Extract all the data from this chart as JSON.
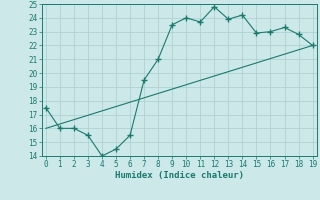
{
  "xlabel": "Humidex (Indice chaleur)",
  "line1_x": [
    0,
    1,
    2,
    3,
    4,
    5,
    6,
    7,
    8,
    9,
    10,
    11,
    12,
    13,
    14,
    15,
    16,
    17,
    18,
    19
  ],
  "line1_y": [
    17.5,
    16.0,
    16.0,
    15.5,
    14.0,
    14.5,
    15.5,
    19.5,
    21.0,
    23.5,
    24.0,
    23.7,
    24.8,
    23.9,
    24.2,
    22.9,
    23.0,
    23.3,
    22.8,
    22.0
  ],
  "line2_x": [
    0,
    19
  ],
  "line2_y": [
    16.0,
    22.0
  ],
  "line_color": "#1a7a6e",
  "bg_color": "#cce8e8",
  "grid_color": "#aacece",
  "ylim": [
    14,
    25
  ],
  "xlim": [
    -0.3,
    19.3
  ],
  "yticks": [
    14,
    15,
    16,
    17,
    18,
    19,
    20,
    21,
    22,
    23,
    24,
    25
  ],
  "xticks": [
    0,
    1,
    2,
    3,
    4,
    5,
    6,
    7,
    8,
    9,
    10,
    11,
    12,
    13,
    14,
    15,
    16,
    17,
    18,
    19
  ]
}
